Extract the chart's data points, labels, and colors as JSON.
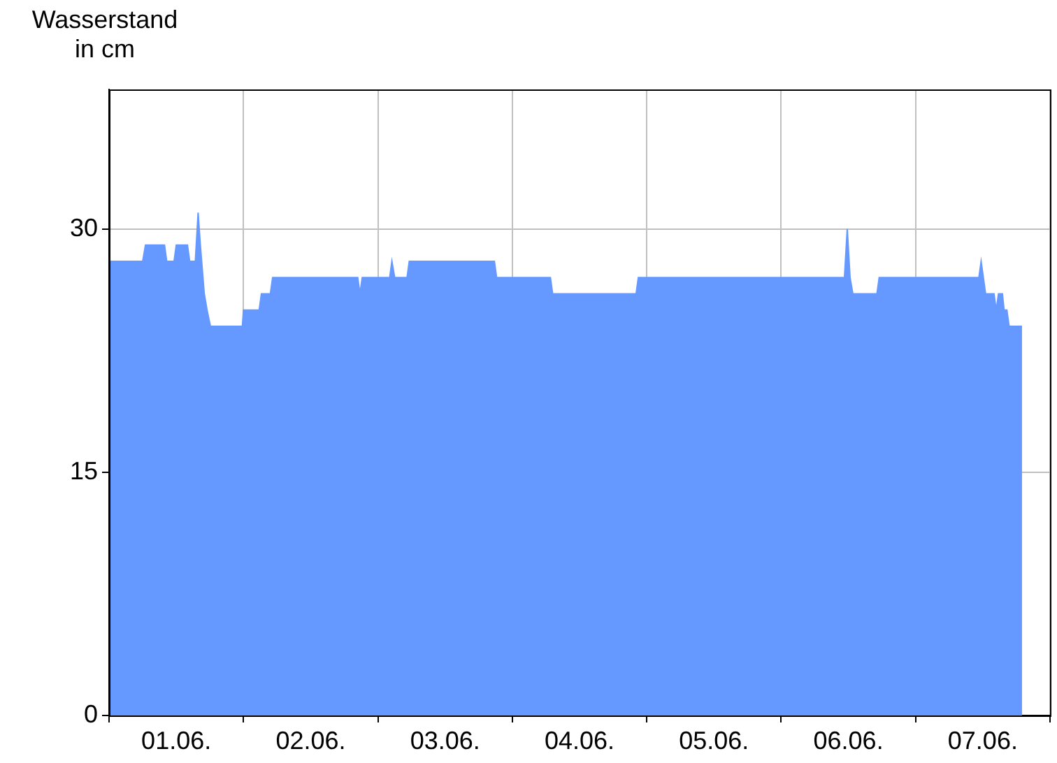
{
  "chart_data": {
    "type": "area",
    "ylabel": "Wasserstand in cm",
    "color": "#6699ff",
    "grid": true,
    "x": [
      "--06-01T00:00",
      "--06-01T06:00",
      "--06-01T06:30",
      "--06-01T09:54",
      "--06-01T10:18",
      "--06-01T11:36",
      "--06-01T12:00",
      "--06-01T14:00",
      "--06-01T14:24",
      "--06-01T15:24",
      "--06-01T15:54",
      "--06-01T16:18",
      "--06-01T17:00",
      "--06-01T17:30",
      "--06-01T18:06",
      "--06-01T23:48",
      "--06-02T00:00",
      "--06-02T02:48",
      "--06-02T03:12",
      "--06-02T04:48",
      "--06-02T05:12",
      "--06-02T20:24",
      "--06-02T20:48",
      "--06-02T21:12",
      "--06-03T02:06",
      "--06-03T02:30",
      "--06-03T03:00",
      "--06-03T05:12",
      "--06-03T05:36",
      "--06-03T20:48",
      "--06-03T21:12",
      "--06-04T06:48",
      "--06-04T07:12",
      "--06-04T22:06",
      "--06-04T22:30",
      "--06-06T11:18",
      "--06-06T11:48",
      "--06-06T12:18",
      "--06-06T12:48",
      "--06-06T17:06",
      "--06-06T17:30",
      "--06-07T11:18",
      "--06-07T11:42",
      "--06-07T12:06",
      "--06-07T12:30",
      "--06-07T14:00",
      "--06-07T14:24",
      "--06-07T14:48",
      "--06-07T15:30",
      "--06-07T15:48",
      "--06-07T16:18",
      "--06-07T16:42",
      "--06-07T19:00"
    ],
    "values": [
      28,
      28,
      29,
      29,
      28,
      28,
      29,
      29,
      28,
      28,
      31,
      29,
      26,
      25,
      24,
      24,
      25,
      25,
      26,
      26,
      27,
      27,
      26,
      27,
      27,
      28,
      27,
      27,
      28,
      28,
      27,
      27,
      26,
      26,
      27,
      27,
      30,
      27,
      26,
      26,
      27,
      27,
      28,
      27,
      26,
      26,
      25,
      26,
      26,
      25,
      25,
      24,
      24
    ],
    "xlim": [
      "--06-01T00:00",
      "--06-08T00:00"
    ],
    "ylim": [
      0,
      38.6
    ],
    "yticks": [
      0,
      15,
      30
    ],
    "xticks": [
      {
        "value": "--06-01T00:00",
        "label": null
      },
      {
        "value": "--06-01T12:00",
        "label": "01.06."
      },
      {
        "value": "--06-02T00:00",
        "label": null
      },
      {
        "value": "--06-02T12:00",
        "label": "02.06."
      },
      {
        "value": "--06-03T00:00",
        "label": null
      },
      {
        "value": "--06-03T12:00",
        "label": "03.06."
      },
      {
        "value": "--06-04T00:00",
        "label": null
      },
      {
        "value": "--06-04T12:00",
        "label": "04.06."
      },
      {
        "value": "--06-05T00:00",
        "label": null
      },
      {
        "value": "--06-05T12:00",
        "label": "05.06."
      },
      {
        "value": "--06-06T00:00",
        "label": null
      },
      {
        "value": "--06-06T12:00",
        "label": "06.06."
      },
      {
        "value": "--06-07T00:00",
        "label": null
      },
      {
        "value": "--06-07T12:00",
        "label": "07.06."
      },
      {
        "value": "--06-08T00:00",
        "label": null
      }
    ]
  }
}
